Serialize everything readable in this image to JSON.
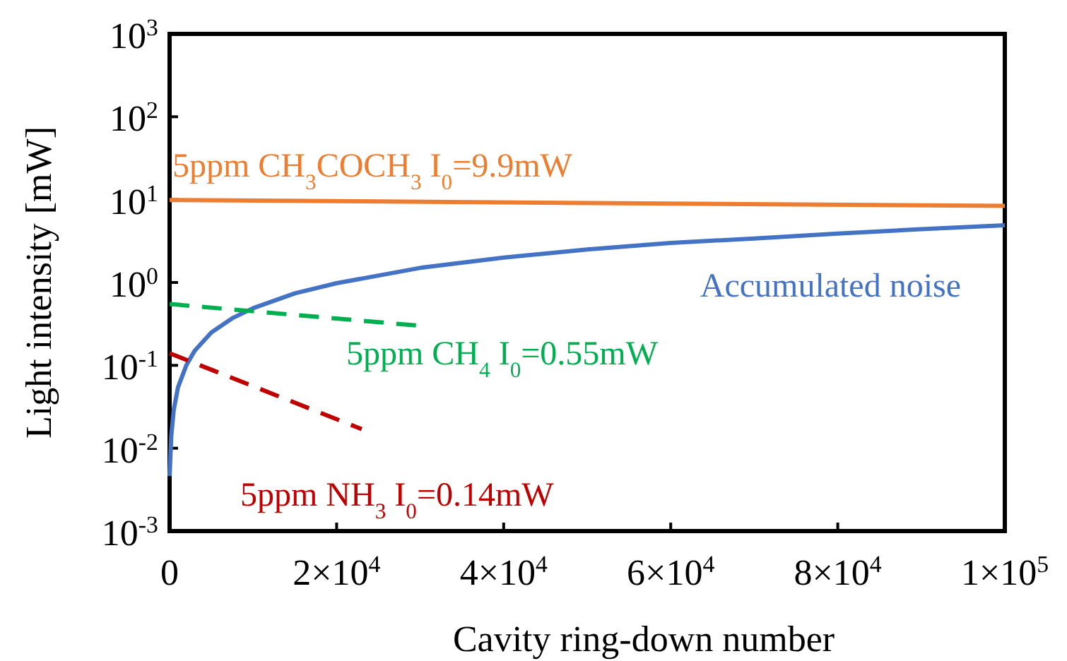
{
  "chart_data": {
    "type": "line",
    "xlabel": "Cavity ring-down number",
    "ylabel": "Light intensity [mW]",
    "log": "y",
    "grid": false,
    "marker": "none",
    "xlim": [
      0,
      100000
    ],
    "ylim": [
      0.001,
      1000
    ],
    "xticks": [
      0,
      {
        "value": 20000,
        "label": "2×10$^{4}$"
      },
      {
        "value": 40000,
        "label": "4×10$^{4}$"
      },
      {
        "value": 60000,
        "label": "6×10$^{4}$"
      },
      {
        "value": 80000,
        "label": "8×10$^{4}$"
      },
      {
        "value": 100000,
        "label": "1×10$^{5}$"
      }
    ],
    "yticks": [
      {
        "value": 0.001,
        "label": "10$^{-3}$"
      },
      {
        "value": 0.01,
        "label": "10$^{-2}$"
      },
      {
        "value": 0.1,
        "label": "10$^{-1}$"
      },
      {
        "value": 1,
        "label": "10$^{0}$"
      },
      {
        "value": 10,
        "label": "10$^{1}$"
      },
      {
        "value": 100,
        "label": "10$^{2}$"
      },
      {
        "value": 1000,
        "label": "10$^{3}$"
      }
    ],
    "series": [
      {
        "name": "5ppm CH$_{3}$COCH$_{3}$ I$_{0}$=9.9mW",
        "color": "#ed7d31",
        "line_style": "solid",
        "x": [
          0,
          100000
        ],
        "values": [
          9.9,
          8.4
        ]
      },
      {
        "name": "Accumulated noise",
        "color": "#4472c4",
        "line_style": "solid",
        "x": [
          0,
          200,
          500,
          1000,
          2000,
          3000,
          5000,
          7500,
          10000,
          15000,
          20000,
          30000,
          40000,
          50000,
          60000,
          70000,
          80000,
          90000,
          100000
        ],
        "values": [
          0.0046,
          0.014,
          0.029,
          0.054,
          0.1,
          0.15,
          0.25,
          0.37,
          0.49,
          0.74,
          0.98,
          1.5,
          2.0,
          2.5,
          3.0,
          3.4,
          3.9,
          4.4,
          4.9
        ]
      },
      {
        "name": "5ppm CH$_{4}$ I$_{0}$=0.55mW",
        "color": "#00b050",
        "line_style": "dashed",
        "x": [
          0,
          30000
        ],
        "values": [
          0.55,
          0.3
        ]
      },
      {
        "name": "5ppm NH$_{3}$ I$_{0}$=0.14mW",
        "color": "#c00000",
        "line_style": "dashed",
        "x": [
          0,
          23000
        ],
        "values": [
          0.14,
          0.017
        ]
      }
    ]
  }
}
